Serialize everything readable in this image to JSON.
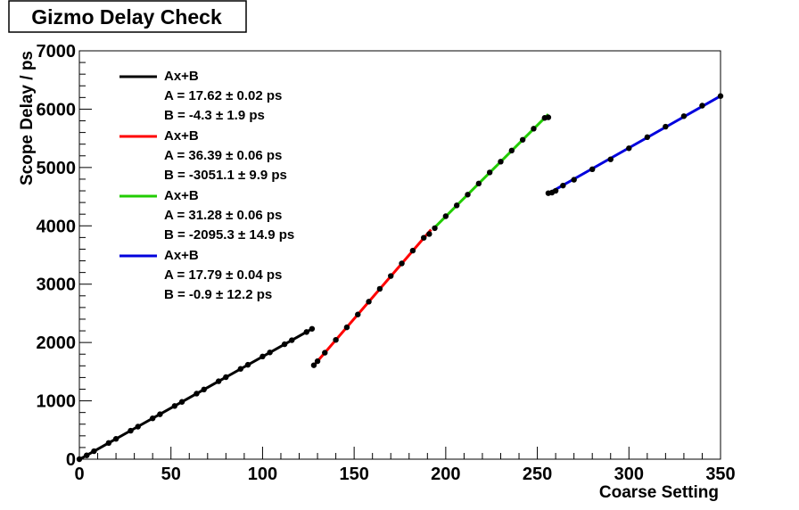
{
  "chart_data": {
    "type": "scatter",
    "title": "Gizmo Delay Check",
    "xlabel": "Coarse Setting",
    "ylabel": "Scope Delay / ps",
    "xlim": [
      0,
      350
    ],
    "ylim": [
      0,
      7000
    ],
    "xticks": [
      0,
      50,
      100,
      150,
      200,
      250,
      300,
      350
    ],
    "yticks": [
      0,
      1000,
      2000,
      3000,
      4000,
      5000,
      6000,
      7000
    ],
    "xtick_labels": [
      "0",
      "50",
      "100",
      "150",
      "200",
      "250",
      "300",
      "350"
    ],
    "ytick_labels": [
      "0",
      "1000",
      "2000",
      "3000",
      "4000",
      "5000",
      "6000",
      "7000"
    ],
    "grid": false,
    "legend_position": "top-left",
    "series": [
      {
        "name": "Ax+B",
        "color": "#000000",
        "fit": {
          "A": 17.62,
          "B": -4.3,
          "x_range": [
            0,
            128
          ]
        },
        "legend_lines": [
          "Ax+B",
          "A = 17.62 ± 0.02 ps",
          "B = -4.3 ± 1.9 ps"
        ],
        "x": [
          0,
          4,
          8,
          16,
          20,
          28,
          32,
          40,
          44,
          52,
          56,
          64,
          68,
          76,
          80,
          88,
          92,
          100,
          104,
          112,
          116,
          124,
          127
        ],
        "y": [
          0,
          66,
          137,
          278,
          348,
          488,
          558,
          700,
          770,
          912,
          982,
          1124,
          1194,
          1336,
          1406,
          1548,
          1618,
          1760,
          1830,
          1970,
          2040,
          2180,
          2235
        ]
      },
      {
        "name": "Ax+B",
        "color": "#ff0000",
        "fit": {
          "A": 36.39,
          "B": -3051.1,
          "x_range": [
            128,
            192
          ]
        },
        "legend_lines": [
          "Ax+B",
          "A = 36.39 ± 0.06 ps",
          "B = -3051.1 ± 9.9 ps"
        ],
        "x": [
          128,
          130,
          134,
          140,
          146,
          152,
          158,
          164,
          170,
          176,
          182,
          188,
          191
        ],
        "y": [
          1610,
          1680,
          1825,
          2045,
          2260,
          2480,
          2700,
          2920,
          3140,
          3355,
          3575,
          3795,
          3860
        ]
      },
      {
        "name": "Ax+B",
        "color": "#22cc00",
        "fit": {
          "A": 31.28,
          "B": -2095.3,
          "x_range": [
            193,
            256
          ]
        },
        "legend_lines": [
          "Ax+B",
          "A = 31.28 ± 0.06 ps",
          "B = -2095.3 ± 14.9 ps"
        ],
        "x": [
          194,
          200,
          206,
          212,
          218,
          224,
          230,
          236,
          242,
          248,
          254,
          256
        ],
        "y": [
          3960,
          4165,
          4350,
          4535,
          4725,
          4915,
          5100,
          5290,
          5475,
          5665,
          5850,
          5860
        ]
      },
      {
        "name": "Ax+B",
        "color": "#0000dd",
        "fit": {
          "A": 17.79,
          "B": -0.9,
          "x_range": [
            256,
            350
          ]
        },
        "legend_lines": [
          "Ax+B",
          "A = 17.79 ± 0.04 ps",
          "B = -0.9 ± 12.2 ps"
        ],
        "x": [
          256,
          258,
          260,
          264,
          270,
          280,
          290,
          300,
          310,
          320,
          330,
          340,
          350
        ],
        "y": [
          4560,
          4570,
          4600,
          4690,
          4790,
          4970,
          5140,
          5330,
          5520,
          5700,
          5880,
          6060,
          6225
        ]
      }
    ]
  }
}
